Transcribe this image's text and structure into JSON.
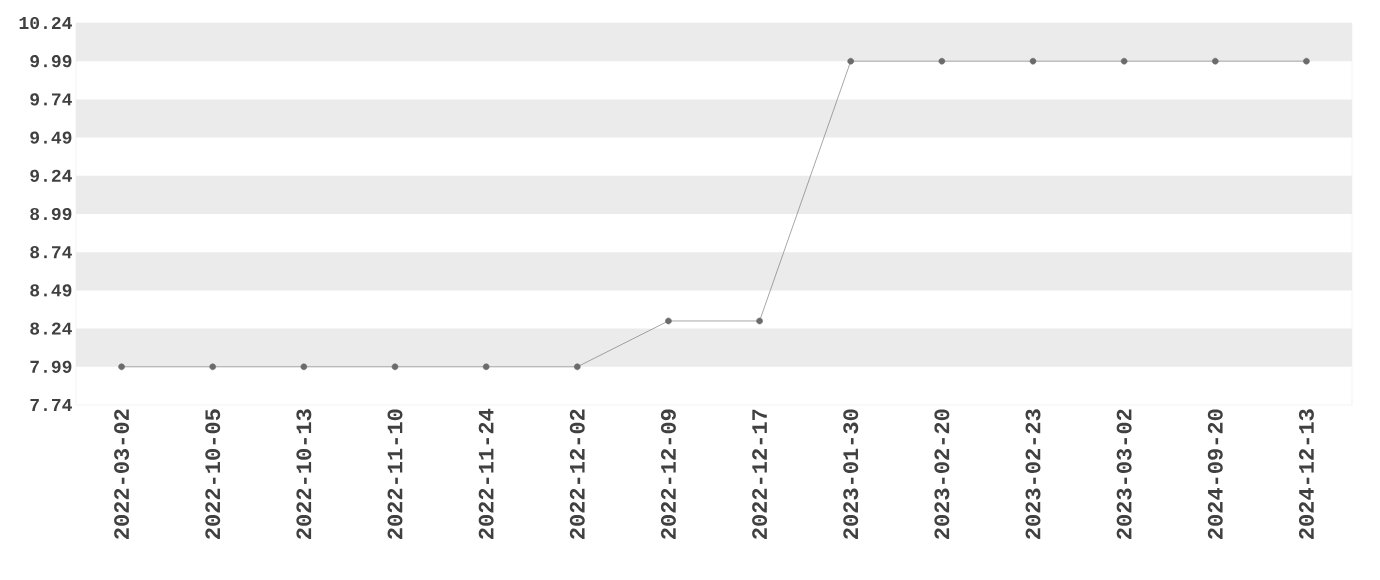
{
  "chart_data": {
    "type": "line",
    "categories": [
      "2022-03-02",
      "2022-10-05",
      "2022-10-13",
      "2022-11-10",
      "2022-11-24",
      "2022-12-02",
      "2022-12-09",
      "2022-12-17",
      "2023-01-30",
      "2023-02-20",
      "2023-02-23",
      "2023-03-02",
      "2024-09-20",
      "2024-12-13"
    ],
    "series": [
      {
        "color": "#6b6b6b",
        "values": [
          7.99,
          7.99,
          7.99,
          7.99,
          7.99,
          7.99,
          8.29,
          8.29,
          9.99,
          9.99,
          9.99,
          9.99,
          9.99,
          9.99
        ]
      }
    ],
    "ylim": [
      7.74,
      10.24
    ],
    "yticks": [
      7.74,
      7.99,
      8.24,
      8.49,
      8.74,
      8.99,
      9.24,
      9.49,
      9.74,
      9.99,
      10.24
    ],
    "bands": [
      {
        "axis": "y",
        "from": 7.99,
        "to": 8.24,
        "color": "#ebebeb"
      },
      {
        "axis": "y",
        "from": 8.49,
        "to": 8.74,
        "color": "#ebebeb"
      },
      {
        "axis": "y",
        "from": 8.99,
        "to": 9.24,
        "color": "#ebebeb"
      },
      {
        "axis": "y",
        "from": 9.49,
        "to": 9.74,
        "color": "#ebebeb"
      },
      {
        "axis": "y",
        "from": 9.99,
        "to": 10.24,
        "color": "#ebebeb"
      }
    ],
    "marker": "circle",
    "line_style": "solid"
  }
}
